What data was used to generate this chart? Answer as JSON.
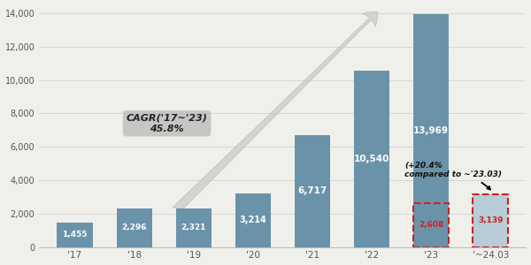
{
  "categories": [
    "'17",
    "'18",
    "'19",
    "'20",
    "'21",
    "'22",
    "'23",
    "'~24.03"
  ],
  "values": [
    1455,
    2296,
    2321,
    3214,
    6717,
    10540,
    13969,
    3139
  ],
  "mini_q1_23": 2608,
  "bar_color": "#6a93aa",
  "mini_bar_color": "#b8cdd8",
  "background_color": "#f0f0eb",
  "ylim": [
    0,
    14500
  ],
  "yticks": [
    0,
    2000,
    4000,
    6000,
    8000,
    10000,
    12000,
    14000
  ],
  "bar_labels": [
    "1,455",
    "2,296",
    "2,321",
    "3,214",
    "6,717",
    "10,540",
    "13,969",
    "3,139"
  ],
  "mini_bar_label_23": "2,608",
  "mini_bar_label_24": "3,139",
  "cagr_text": "CAGR('17~'23)\n45.8%",
  "annotation_text": "(+20.4%\ncompared to ~'23.03)"
}
